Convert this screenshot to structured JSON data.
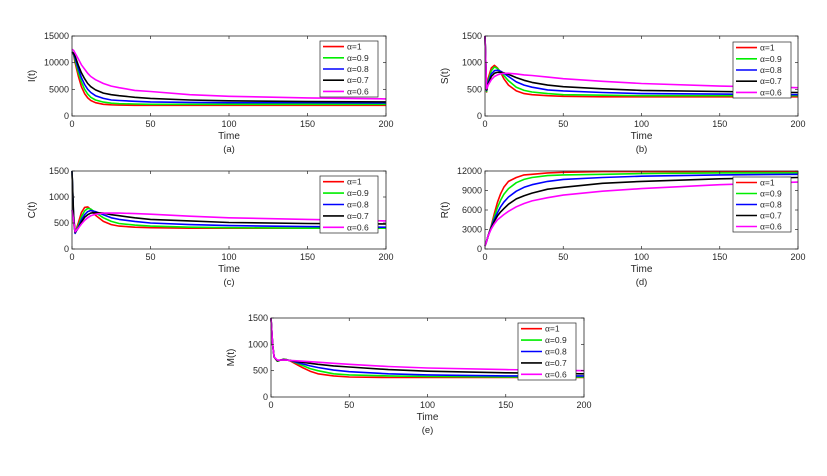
{
  "chart_data": [
    {
      "type": "line",
      "panel_label": "(a)",
      "xlabel": "Time",
      "ylabel": "I(t)",
      "xlim": [
        0,
        200
      ],
      "ylim": [
        0,
        15000
      ],
      "xticks": [
        0,
        50,
        100,
        150,
        200
      ],
      "yticks": [
        0,
        5000,
        10000,
        15000
      ],
      "grid": false,
      "legend_position": "top-right",
      "x": [
        0,
        1,
        2,
        4,
        6,
        8,
        10,
        12,
        15,
        20,
        25,
        30,
        40,
        50,
        75,
        100,
        150,
        200
      ],
      "series": [
        {
          "name": "α=1",
          "color": "#ff0000",
          "values": [
            12000,
            11500,
            10000,
            7500,
            5500,
            4200,
            3400,
            2900,
            2500,
            2200,
            2100,
            2050,
            2000,
            2000,
            2000,
            2000,
            2000,
            2000
          ]
        },
        {
          "name": "α=0.9",
          "color": "#00ee00",
          "values": [
            12000,
            11600,
            10400,
            8200,
            6400,
            5000,
            4100,
            3500,
            3000,
            2600,
            2400,
            2300,
            2250,
            2200,
            2200,
            2200,
            2200,
            2200
          ]
        },
        {
          "name": "α=0.8",
          "color": "#0000ff",
          "values": [
            12000,
            11700,
            10800,
            8900,
            7200,
            5900,
            5000,
            4400,
            3800,
            3300,
            3000,
            2900,
            2750,
            2650,
            2550,
            2500,
            2500,
            2450
          ]
        },
        {
          "name": "α=0.7",
          "color": "#000000",
          "values": [
            12000,
            11800,
            11200,
            9500,
            8100,
            7000,
            6100,
            5500,
            4900,
            4300,
            4000,
            3800,
            3500,
            3300,
            3000,
            2850,
            2700,
            2650
          ]
        },
        {
          "name": "α=0.6",
          "color": "#ff00ff",
          "values": [
            12500,
            12300,
            11800,
            10700,
            9600,
            8800,
            8000,
            7400,
            6800,
            6100,
            5600,
            5300,
            4800,
            4600,
            4000,
            3700,
            3400,
            3200
          ]
        }
      ]
    },
    {
      "type": "line",
      "panel_label": "(b)",
      "xlabel": "Time",
      "ylabel": "S(t)",
      "xlim": [
        0,
        200
      ],
      "ylim": [
        0,
        1500
      ],
      "xticks": [
        0,
        50,
        100,
        150,
        200
      ],
      "yticks": [
        0,
        500,
        1000,
        1500
      ],
      "grid": false,
      "legend_position": "top-right",
      "x": [
        0,
        1,
        2,
        4,
        6,
        8,
        10,
        12,
        15,
        20,
        25,
        30,
        40,
        50,
        75,
        100,
        150,
        200
      ],
      "series": [
        {
          "name": "α=1",
          "color": "#ff0000",
          "values": [
            1500,
            450,
            700,
            900,
            950,
            900,
            820,
            700,
            580,
            470,
            420,
            400,
            380,
            370,
            360,
            360,
            360,
            360
          ]
        },
        {
          "name": "α=0.9",
          "color": "#00ee00",
          "values": [
            1500,
            460,
            650,
            850,
            920,
            890,
            830,
            760,
            660,
            540,
            480,
            450,
            420,
            400,
            390,
            380,
            380,
            380
          ]
        },
        {
          "name": "α=0.8",
          "color": "#0000ff",
          "values": [
            1500,
            480,
            620,
            790,
            850,
            860,
            840,
            800,
            740,
            640,
            580,
            540,
            490,
            470,
            440,
            420,
            410,
            400
          ]
        },
        {
          "name": "α=0.7",
          "color": "#000000",
          "values": [
            1500,
            490,
            600,
            740,
            800,
            820,
            820,
            810,
            780,
            720,
            670,
            630,
            580,
            550,
            510,
            480,
            460,
            440
          ]
        },
        {
          "name": "α=0.6",
          "color": "#ff00ff",
          "values": [
            1500,
            500,
            580,
            680,
            740,
            770,
            790,
            800,
            800,
            790,
            770,
            760,
            730,
            700,
            650,
            610,
            560,
            530
          ]
        }
      ]
    },
    {
      "type": "line",
      "panel_label": "(c)",
      "xlabel": "Time",
      "ylabel": "C(t)",
      "xlim": [
        0,
        200
      ],
      "ylim": [
        0,
        1500
      ],
      "xticks": [
        0,
        50,
        100,
        150,
        200
      ],
      "yticks": [
        0,
        500,
        1000,
        1500
      ],
      "grid": false,
      "legend_position": "top-right",
      "x": [
        0,
        1,
        2,
        4,
        6,
        8,
        10,
        12,
        15,
        20,
        25,
        30,
        40,
        50,
        75,
        100,
        150,
        200
      ],
      "series": [
        {
          "name": "α=1",
          "color": "#ff0000",
          "values": [
            1500,
            500,
            320,
            500,
            700,
            800,
            810,
            760,
            650,
            530,
            470,
            440,
            420,
            410,
            400,
            400,
            400,
            400
          ]
        },
        {
          "name": "α=0.9",
          "color": "#00ee00",
          "values": [
            1500,
            550,
            310,
            450,
            620,
            730,
            780,
            770,
            700,
            600,
            530,
            490,
            460,
            440,
            420,
            410,
            400,
            400
          ]
        },
        {
          "name": "α=0.8",
          "color": "#0000ff",
          "values": [
            1500,
            600,
            300,
            420,
            560,
            660,
            720,
            740,
            720,
            660,
            600,
            570,
            530,
            500,
            470,
            450,
            430,
            420
          ]
        },
        {
          "name": "α=0.7",
          "color": "#000000",
          "values": [
            1500,
            650,
            320,
            400,
            520,
            610,
            660,
            690,
            700,
            690,
            660,
            640,
            600,
            570,
            540,
            510,
            490,
            480
          ]
        },
        {
          "name": "α=0.6",
          "color": "#ff00ff",
          "values": [
            750,
            550,
            330,
            400,
            480,
            550,
            600,
            640,
            670,
            690,
            690,
            690,
            680,
            670,
            630,
            600,
            570,
            540
          ]
        }
      ]
    },
    {
      "type": "line",
      "panel_label": "(d)",
      "xlabel": "Time",
      "ylabel": "R(t)",
      "xlim": [
        0,
        200
      ],
      "ylim": [
        0,
        12000
      ],
      "xticks": [
        0,
        50,
        100,
        150,
        200
      ],
      "yticks": [
        0,
        3000,
        6000,
        9000,
        12000
      ],
      "grid": false,
      "legend_position": "right",
      "x": [
        0,
        1,
        2,
        4,
        6,
        8,
        10,
        12,
        15,
        20,
        25,
        30,
        40,
        50,
        75,
        100,
        150,
        200
      ],
      "series": [
        {
          "name": "α=1",
          "color": "#ff0000",
          "values": [
            500,
            1200,
            2000,
            3600,
            5500,
            7200,
            8500,
            9500,
            10400,
            11000,
            11400,
            11500,
            11700,
            11800,
            11900,
            11900,
            11900,
            11900
          ]
        },
        {
          "name": "α=0.9",
          "color": "#00ee00",
          "values": [
            500,
            1200,
            2000,
            3500,
            5000,
            6400,
            7500,
            8400,
            9300,
            10200,
            10700,
            11000,
            11300,
            11400,
            11500,
            11600,
            11700,
            11700
          ]
        },
        {
          "name": "α=0.8",
          "color": "#0000ff",
          "values": [
            500,
            1200,
            2000,
            3400,
            4600,
            5600,
            6500,
            7200,
            8000,
            8900,
            9500,
            9900,
            10400,
            10700,
            11000,
            11200,
            11400,
            11500
          ]
        },
        {
          "name": "α=0.7",
          "color": "#000000",
          "values": [
            500,
            1200,
            2000,
            3300,
            4300,
            5100,
            5700,
            6200,
            6900,
            7700,
            8200,
            8600,
            9200,
            9500,
            10100,
            10400,
            10800,
            11000
          ]
        },
        {
          "name": "α=0.6",
          "color": "#ff00ff",
          "values": [
            500,
            1200,
            2000,
            3100,
            3900,
            4500,
            4900,
            5300,
            5800,
            6500,
            7000,
            7400,
            7900,
            8300,
            8900,
            9300,
            9900,
            10300
          ]
        }
      ]
    },
    {
      "type": "line",
      "panel_label": "(e)",
      "xlabel": "Time",
      "ylabel": "M(t)",
      "xlim": [
        0,
        200
      ],
      "ylim": [
        0,
        1500
      ],
      "xticks": [
        0,
        50,
        100,
        150,
        200
      ],
      "yticks": [
        0,
        500,
        1000,
        1500
      ],
      "grid": false,
      "legend_position": "top-right",
      "x": [
        0,
        1,
        2,
        4,
        6,
        8,
        10,
        12,
        15,
        20,
        25,
        30,
        40,
        50,
        75,
        100,
        150,
        200
      ],
      "series": [
        {
          "name": "α=1",
          "color": "#ff0000",
          "values": [
            1500,
            1000,
            760,
            680,
            700,
            720,
            710,
            690,
            640,
            560,
            490,
            440,
            400,
            380,
            370,
            370,
            370,
            370
          ]
        },
        {
          "name": "α=0.9",
          "color": "#00ee00",
          "values": [
            1500,
            1000,
            760,
            680,
            700,
            715,
            710,
            695,
            660,
            600,
            540,
            500,
            440,
            420,
            400,
            390,
            380,
            380
          ]
        },
        {
          "name": "α=0.8",
          "color": "#0000ff",
          "values": [
            1500,
            1000,
            760,
            690,
            700,
            710,
            705,
            695,
            670,
            630,
            590,
            560,
            510,
            480,
            440,
            420,
            400,
            400
          ]
        },
        {
          "name": "α=0.7",
          "color": "#000000",
          "values": [
            1500,
            1000,
            760,
            690,
            700,
            705,
            700,
            695,
            680,
            660,
            640,
            620,
            590,
            570,
            520,
            490,
            460,
            440
          ]
        },
        {
          "name": "α=0.6",
          "color": "#ff00ff",
          "values": [
            1500,
            1000,
            760,
            700,
            700,
            700,
            700,
            695,
            690,
            680,
            670,
            660,
            640,
            620,
            580,
            550,
            520,
            500
          ]
        }
      ]
    }
  ]
}
